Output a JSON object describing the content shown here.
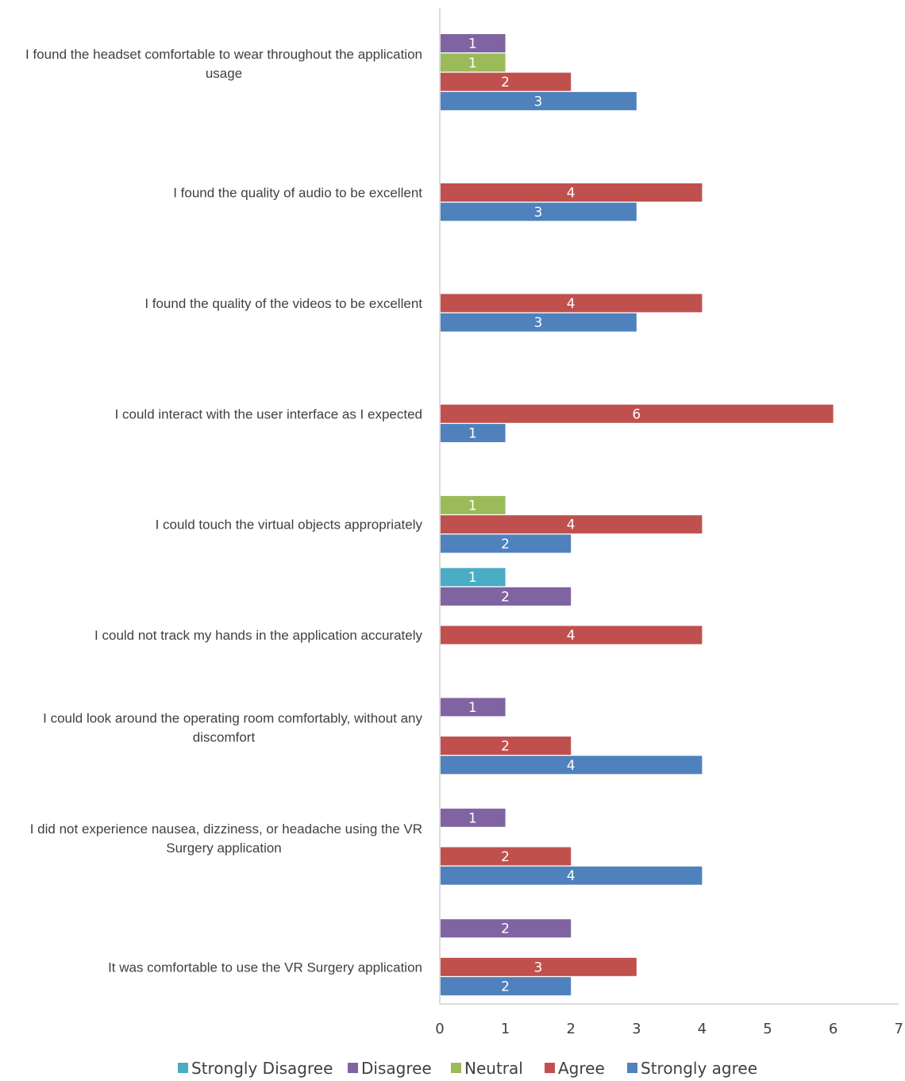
{
  "chart_data": {
    "type": "bar",
    "orientation": "horizontal",
    "xlim": [
      0,
      7
    ],
    "xticks": [
      "0",
      "1",
      "2",
      "3",
      "4",
      "5",
      "6",
      "7"
    ],
    "grid": false,
    "legend_position": "bottom",
    "legend": [
      {
        "name": "Strongly Disagree",
        "key": "strongly_disagree",
        "color": "#4BACC6"
      },
      {
        "name": "Disagree",
        "key": "disagree",
        "color": "#8064A2"
      },
      {
        "name": "Neutral",
        "key": "neutral",
        "color": "#9BBB59"
      },
      {
        "name": "Agree",
        "key": "agree",
        "color": "#C0504D"
      },
      {
        "name": "Strongly agree",
        "key": "strongly_agree",
        "color": "#4F81BD"
      }
    ],
    "categories": [
      {
        "label_lines": [
          "I found the headset comfortable to wear throughout the application",
          "usage"
        ],
        "values": {
          "strongly_disagree": 0,
          "disagree": 1,
          "neutral": 1,
          "agree": 2,
          "strongly_agree": 3
        }
      },
      {
        "label_lines": [
          "I found the quality of audio to be excellent"
        ],
        "values": {
          "strongly_disagree": 0,
          "disagree": 0,
          "neutral": 0,
          "agree": 4,
          "strongly_agree": 3
        }
      },
      {
        "label_lines": [
          "I found the quality of the videos to be excellent"
        ],
        "values": {
          "strongly_disagree": 0,
          "disagree": 0,
          "neutral": 0,
          "agree": 4,
          "strongly_agree": 3
        }
      },
      {
        "label_lines": [
          "I could interact with the user interface as I expected"
        ],
        "values": {
          "strongly_disagree": 0,
          "disagree": 0,
          "neutral": 0,
          "agree": 6,
          "strongly_agree": 1
        }
      },
      {
        "label_lines": [
          "I could touch the virtual objects appropriately"
        ],
        "values": {
          "strongly_disagree": 0,
          "disagree": 0,
          "neutral": 1,
          "agree": 4,
          "strongly_agree": 2
        }
      },
      {
        "label_lines": [
          "I could not track my hands in the application accurately"
        ],
        "values": {
          "strongly_disagree": 1,
          "disagree": 2,
          "neutral": 0,
          "agree": 4,
          "strongly_agree": 0
        }
      },
      {
        "label_lines": [
          "I could look around the operating room comfortably, without any",
          "discomfort"
        ],
        "values": {
          "strongly_disagree": 0,
          "disagree": 1,
          "neutral": 0,
          "agree": 2,
          "strongly_agree": 4
        }
      },
      {
        "label_lines": [
          "I did not experience nausea, dizziness, or headache using the VR",
          "Surgery application"
        ],
        "values": {
          "strongly_disagree": 0,
          "disagree": 1,
          "neutral": 0,
          "agree": 2,
          "strongly_agree": 4
        }
      },
      {
        "label_lines": [
          "It was comfortable to use the VR Surgery application"
        ],
        "values": {
          "strongly_disagree": 0,
          "disagree": 2,
          "neutral": 0,
          "agree": 3,
          "strongly_agree": 2
        }
      }
    ]
  }
}
